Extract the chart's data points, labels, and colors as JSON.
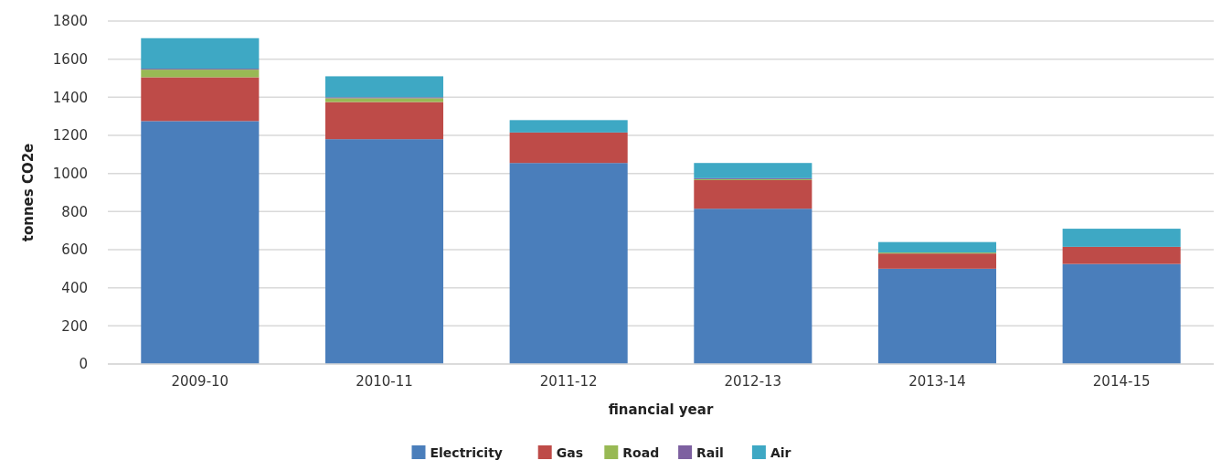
{
  "chart_data": {
    "type": "bar",
    "stacked": true,
    "xlabel": "financial year",
    "ylabel": "tonnes CO2e",
    "categories": [
      "2009-10",
      "2010-11",
      "2011-12",
      "2012-13",
      "2013-14",
      "2014-15"
    ],
    "series": [
      {
        "name": "Electricity",
        "color": "#4a7ebb",
        "values": [
          1275,
          1180,
          1055,
          815,
          500,
          525
        ]
      },
      {
        "name": "Gas",
        "color": "#be4b48",
        "values": [
          230,
          195,
          160,
          150,
          80,
          90
        ]
      },
      {
        "name": "Road",
        "color": "#98b954",
        "values": [
          40,
          20,
          0,
          5,
          5,
          0
        ]
      },
      {
        "name": "Rail",
        "color": "#7d60a0",
        "values": [
          5,
          5,
          0,
          5,
          0,
          0
        ]
      },
      {
        "name": "Air",
        "color": "#3ea8c4",
        "values": [
          160,
          110,
          65,
          80,
          55,
          95
        ]
      }
    ],
    "ylim": [
      0,
      1800
    ],
    "yticks": [
      0,
      200,
      400,
      600,
      800,
      1000,
      1200,
      1400,
      1600,
      1800
    ],
    "grid": "y",
    "legend": "bottom"
  }
}
